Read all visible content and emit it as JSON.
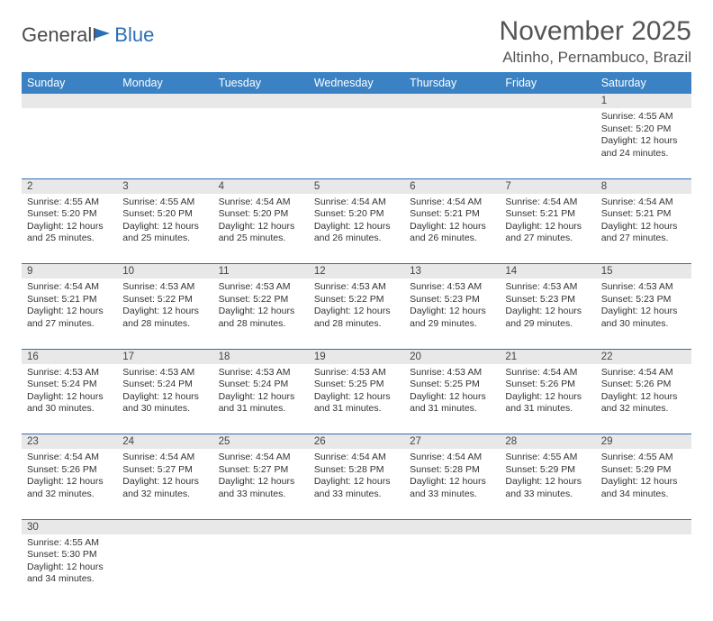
{
  "logo": {
    "text1": "General",
    "text2": "Blue"
  },
  "title": "November 2025",
  "location": "Altinho, Pernambuco, Brazil",
  "colors": {
    "header_bg": "#3b82c4",
    "header_text": "#ffffff",
    "border": "#2d6fb5",
    "daynum_bg": "#e8e8e8",
    "text": "#333333",
    "title_text": "#555555"
  },
  "fonts": {
    "title_size": 30,
    "location_size": 17,
    "header_size": 12.5,
    "daynum_size": 11.5,
    "body_size": 10.5
  },
  "day_headers": [
    "Sunday",
    "Monday",
    "Tuesday",
    "Wednesday",
    "Thursday",
    "Friday",
    "Saturday"
  ],
  "weeks": [
    [
      null,
      null,
      null,
      null,
      null,
      null,
      {
        "n": "1",
        "sr": "4:55 AM",
        "ss": "5:20 PM",
        "dl": "12 hours and 24 minutes."
      }
    ],
    [
      {
        "n": "2",
        "sr": "4:55 AM",
        "ss": "5:20 PM",
        "dl": "12 hours and 25 minutes."
      },
      {
        "n": "3",
        "sr": "4:55 AM",
        "ss": "5:20 PM",
        "dl": "12 hours and 25 minutes."
      },
      {
        "n": "4",
        "sr": "4:54 AM",
        "ss": "5:20 PM",
        "dl": "12 hours and 25 minutes."
      },
      {
        "n": "5",
        "sr": "4:54 AM",
        "ss": "5:20 PM",
        "dl": "12 hours and 26 minutes."
      },
      {
        "n": "6",
        "sr": "4:54 AM",
        "ss": "5:21 PM",
        "dl": "12 hours and 26 minutes."
      },
      {
        "n": "7",
        "sr": "4:54 AM",
        "ss": "5:21 PM",
        "dl": "12 hours and 27 minutes."
      },
      {
        "n": "8",
        "sr": "4:54 AM",
        "ss": "5:21 PM",
        "dl": "12 hours and 27 minutes."
      }
    ],
    [
      {
        "n": "9",
        "sr": "4:54 AM",
        "ss": "5:21 PM",
        "dl": "12 hours and 27 minutes."
      },
      {
        "n": "10",
        "sr": "4:53 AM",
        "ss": "5:22 PM",
        "dl": "12 hours and 28 minutes."
      },
      {
        "n": "11",
        "sr": "4:53 AM",
        "ss": "5:22 PM",
        "dl": "12 hours and 28 minutes."
      },
      {
        "n": "12",
        "sr": "4:53 AM",
        "ss": "5:22 PM",
        "dl": "12 hours and 28 minutes."
      },
      {
        "n": "13",
        "sr": "4:53 AM",
        "ss": "5:23 PM",
        "dl": "12 hours and 29 minutes."
      },
      {
        "n": "14",
        "sr": "4:53 AM",
        "ss": "5:23 PM",
        "dl": "12 hours and 29 minutes."
      },
      {
        "n": "15",
        "sr": "4:53 AM",
        "ss": "5:23 PM",
        "dl": "12 hours and 30 minutes."
      }
    ],
    [
      {
        "n": "16",
        "sr": "4:53 AM",
        "ss": "5:24 PM",
        "dl": "12 hours and 30 minutes."
      },
      {
        "n": "17",
        "sr": "4:53 AM",
        "ss": "5:24 PM",
        "dl": "12 hours and 30 minutes."
      },
      {
        "n": "18",
        "sr": "4:53 AM",
        "ss": "5:24 PM",
        "dl": "12 hours and 31 minutes."
      },
      {
        "n": "19",
        "sr": "4:53 AM",
        "ss": "5:25 PM",
        "dl": "12 hours and 31 minutes."
      },
      {
        "n": "20",
        "sr": "4:53 AM",
        "ss": "5:25 PM",
        "dl": "12 hours and 31 minutes."
      },
      {
        "n": "21",
        "sr": "4:54 AM",
        "ss": "5:26 PM",
        "dl": "12 hours and 31 minutes."
      },
      {
        "n": "22",
        "sr": "4:54 AM",
        "ss": "5:26 PM",
        "dl": "12 hours and 32 minutes."
      }
    ],
    [
      {
        "n": "23",
        "sr": "4:54 AM",
        "ss": "5:26 PM",
        "dl": "12 hours and 32 minutes."
      },
      {
        "n": "24",
        "sr": "4:54 AM",
        "ss": "5:27 PM",
        "dl": "12 hours and 32 minutes."
      },
      {
        "n": "25",
        "sr": "4:54 AM",
        "ss": "5:27 PM",
        "dl": "12 hours and 33 minutes."
      },
      {
        "n": "26",
        "sr": "4:54 AM",
        "ss": "5:28 PM",
        "dl": "12 hours and 33 minutes."
      },
      {
        "n": "27",
        "sr": "4:54 AM",
        "ss": "5:28 PM",
        "dl": "12 hours and 33 minutes."
      },
      {
        "n": "28",
        "sr": "4:55 AM",
        "ss": "5:29 PM",
        "dl": "12 hours and 33 minutes."
      },
      {
        "n": "29",
        "sr": "4:55 AM",
        "ss": "5:29 PM",
        "dl": "12 hours and 34 minutes."
      }
    ],
    [
      {
        "n": "30",
        "sr": "4:55 AM",
        "ss": "5:30 PM",
        "dl": "12 hours and 34 minutes."
      },
      null,
      null,
      null,
      null,
      null,
      null
    ]
  ],
  "labels": {
    "sunrise": "Sunrise:",
    "sunset": "Sunset:",
    "daylight": "Daylight:"
  }
}
